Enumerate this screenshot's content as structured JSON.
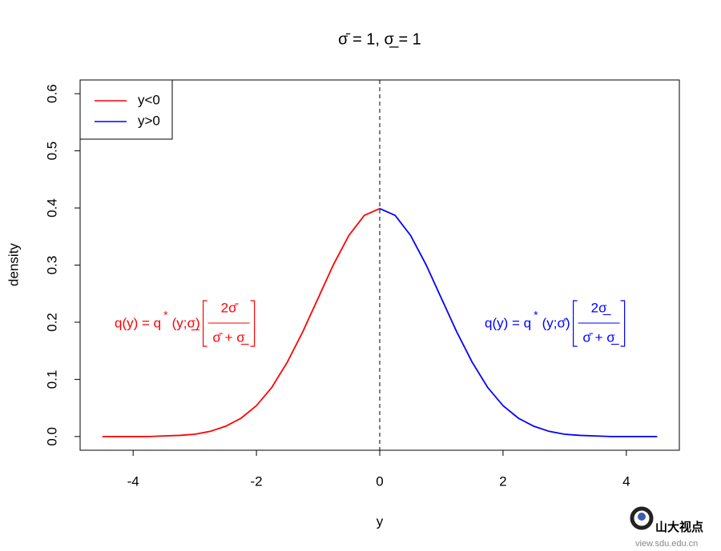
{
  "chart_data": {
    "type": "line",
    "title": "σ̄ = 1, σ̲ = 1",
    "xlabel": "y",
    "ylabel": "density",
    "xlim": [
      -4.86,
      4.86
    ],
    "ylim": [
      -0.024,
      0.624
    ],
    "xticks": [
      -4,
      -2,
      0,
      2,
      4
    ],
    "yticks": [
      {
        "value": 0,
        "label": "0.0"
      },
      0.1,
      0.2,
      0.3,
      0.4,
      0.5,
      0.6
    ],
    "vline": 0,
    "legend": "top-left",
    "series": [
      {
        "name": "y<0",
        "color": "#ff0000",
        "x": [
          -4.5,
          -4.25,
          -4,
          -3.75,
          -3.5,
          -3.25,
          -3,
          -2.75,
          -2.5,
          -2.25,
          -2,
          -1.75,
          -1.5,
          -1.25,
          -1,
          -0.75,
          -0.5,
          -0.25,
          0
        ],
        "values": [
          0,
          0,
          0,
          0,
          0.001,
          0.002,
          0.004,
          0.009,
          0.018,
          0.032,
          0.054,
          0.086,
          0.13,
          0.183,
          0.242,
          0.301,
          0.352,
          0.387,
          0.399
        ]
      },
      {
        "name": "y>0",
        "color": "#0000ff",
        "x": [
          0,
          0.25,
          0.5,
          0.75,
          1,
          1.25,
          1.5,
          1.75,
          2,
          2.25,
          2.5,
          2.75,
          3,
          3.25,
          3.5,
          3.75,
          4,
          4.25,
          4.5
        ],
        "values": [
          0.399,
          0.387,
          0.352,
          0.301,
          0.242,
          0.183,
          0.13,
          0.086,
          0.054,
          0.032,
          0.018,
          0.009,
          0.004,
          0.002,
          0.001,
          0,
          0,
          0,
          0
        ]
      }
    ],
    "annotations": [
      {
        "color": "#ff0000",
        "lead": "q(y) = q",
        "star": "*",
        "arg": "(y;σ̲)",
        "numerator": "2σ̄",
        "denominator": "σ̄ + σ̲"
      },
      {
        "color": "#0000ff",
        "lead": "q(y) = q",
        "star": "*",
        "arg": "(y;σ̄)",
        "numerator": "2σ̲",
        "denominator": "σ̄ + σ̲"
      }
    ]
  },
  "watermark": {
    "name": "山大视点",
    "url": "view.sdu.edu.cn"
  }
}
